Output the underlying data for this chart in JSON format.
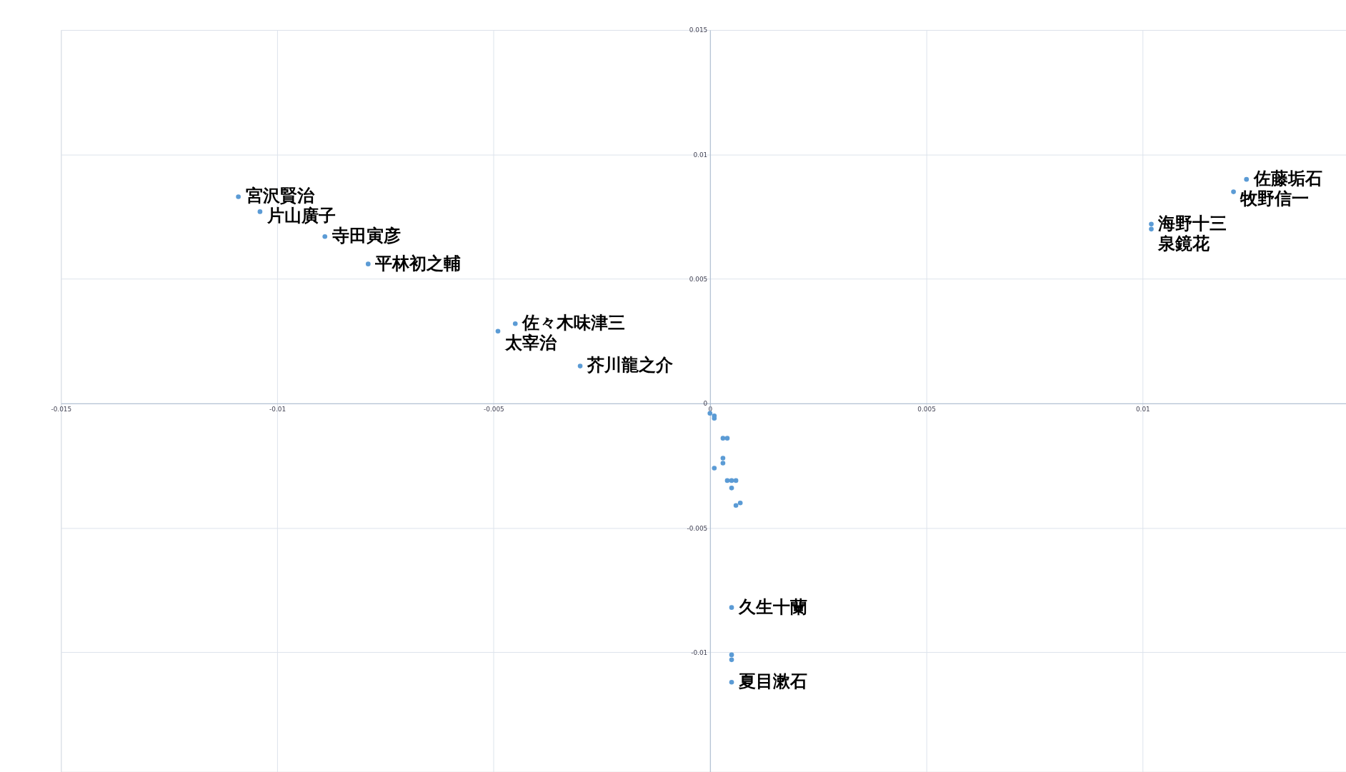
{
  "chart_data": {
    "type": "scatter",
    "x": [
      -0.0109,
      -0.0104,
      -0.0089,
      -0.0079,
      -0.0045,
      -0.0049,
      -0.003,
      0.0124,
      0.0121,
      0.0102,
      0.0102,
      0.0005,
      0.0005,
      0.0005,
      0.0005,
      0.0,
      0.0001,
      0.0001,
      0.0003,
      0.0004,
      0.0003,
      0.0003,
      0.0001,
      0.0004,
      0.0005,
      0.0006,
      0.0005,
      0.0006,
      0.0007
    ],
    "values": [
      0.0083,
      0.0077,
      0.0067,
      0.0056,
      0.0032,
      0.0029,
      0.0015,
      0.009,
      0.0085,
      0.0072,
      0.007,
      -0.0082,
      -0.0101,
      -0.0103,
      -0.0112,
      -0.0004,
      -0.0005,
      -0.0006,
      -0.0014,
      -0.0014,
      -0.0022,
      -0.0024,
      -0.0026,
      -0.0031,
      -0.0031,
      -0.0031,
      -0.0034,
      -0.0041,
      -0.004
    ],
    "value_labels": [
      "宮沢賢治",
      "片山廣子",
      "寺田寅彦",
      "平林初之輔",
      "佐々木味津三",
      "太宰治",
      "芥川龍之介",
      "佐藤垢石",
      "牧野信一",
      "海野十三",
      "泉鏡花",
      "久生十蘭",
      null,
      null,
      "夏目漱石",
      null,
      null,
      null,
      null,
      null,
      null,
      null,
      null,
      null,
      null,
      null,
      null,
      null,
      null
    ],
    "color": "#5b9bd5",
    "marker": "circle",
    "xlim": [
      -0.015,
      0.0147
    ],
    "ylim": [
      -0.0148,
      0.015
    ],
    "xticks": [
      -0.015,
      -0.01,
      -0.005,
      0,
      0.005,
      0.01
    ],
    "yticks": [
      -0.01,
      -0.005,
      0,
      0.005,
      0.01,
      0.015
    ],
    "grid": true
  }
}
